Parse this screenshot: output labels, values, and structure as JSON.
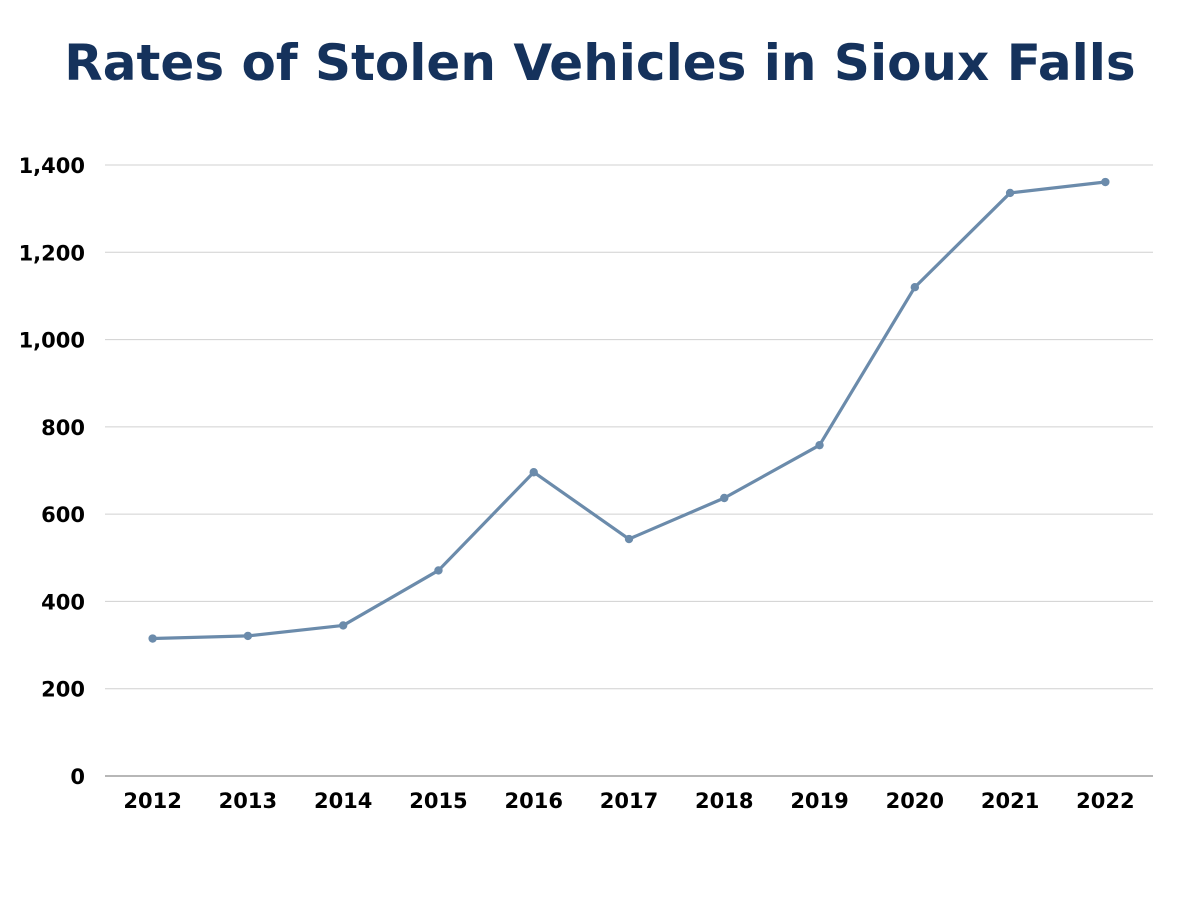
{
  "chart_data": {
    "type": "line",
    "title": "Rates of Stolen Vehicles in Sioux Falls",
    "xlabel": "",
    "ylabel": "",
    "categories": [
      "2012",
      "2013",
      "2014",
      "2015",
      "2016",
      "2017",
      "2018",
      "2019",
      "2020",
      "2021",
      "2022"
    ],
    "series": [
      {
        "values": [
          315,
          321,
          345,
          471,
          696,
          543,
          637,
          758,
          1120,
          1336,
          1361
        ]
      }
    ],
    "ylim": [
      0,
      1400
    ],
    "yticks": [
      0,
      200,
      400,
      600,
      800,
      1000,
      1200,
      1400
    ],
    "ytick_labels": [
      "0",
      "200",
      "400",
      "600",
      "800",
      "1,000",
      "1,200",
      "1,400"
    ],
    "grid": true,
    "legend": "none"
  },
  "colors": {
    "title": "#15325c",
    "line": "#6b8bab",
    "grid": "#d0d0d0",
    "axis": "#8c8c8c"
  }
}
